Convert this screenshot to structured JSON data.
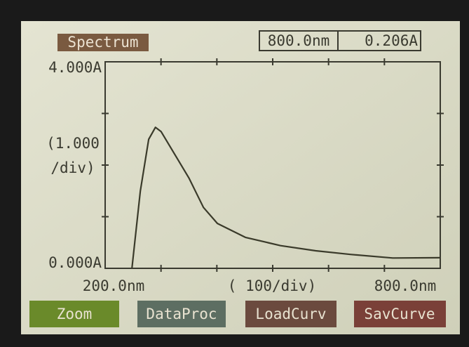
{
  "screen": {
    "title": "Spectrum",
    "readout_wavelength": "800.0nm",
    "readout_absorbance": "0.206A",
    "buttons": [
      "Zoom",
      "DataProc",
      "LoadCurv",
      "SavCurve"
    ]
  },
  "chart_data": {
    "type": "line",
    "ylabel": [
      "(1.000",
      "/div)"
    ],
    "xlabel": "( 100/div)",
    "x": [
      200,
      248,
      263,
      278,
      290,
      300,
      325,
      350,
      376,
      401,
      451,
      514,
      577,
      639,
      715,
      800
    ],
    "values": [
      null,
      0,
      1.5,
      2.5,
      2.73,
      2.65,
      2.2,
      1.75,
      1.18,
      0.87,
      0.6,
      0.44,
      0.34,
      0.27,
      0.2,
      0.206
    ],
    "color": "#3a3a2a",
    "xlim": [
      200,
      800
    ],
    "ylim": [
      0,
      4
    ],
    "xticks": [
      {
        "value": 200,
        "label": "200.0nm"
      },
      {
        "value": 800,
        "label": "800.0nm"
      }
    ],
    "yticks": [
      {
        "value": 0,
        "label": "0.000A"
      },
      {
        "value": 4,
        "label": "4.000A"
      }
    ],
    "xminorticks": [
      300,
      400,
      500,
      600,
      700
    ],
    "yminorticks": [
      1,
      2,
      3
    ],
    "grid": false
  }
}
